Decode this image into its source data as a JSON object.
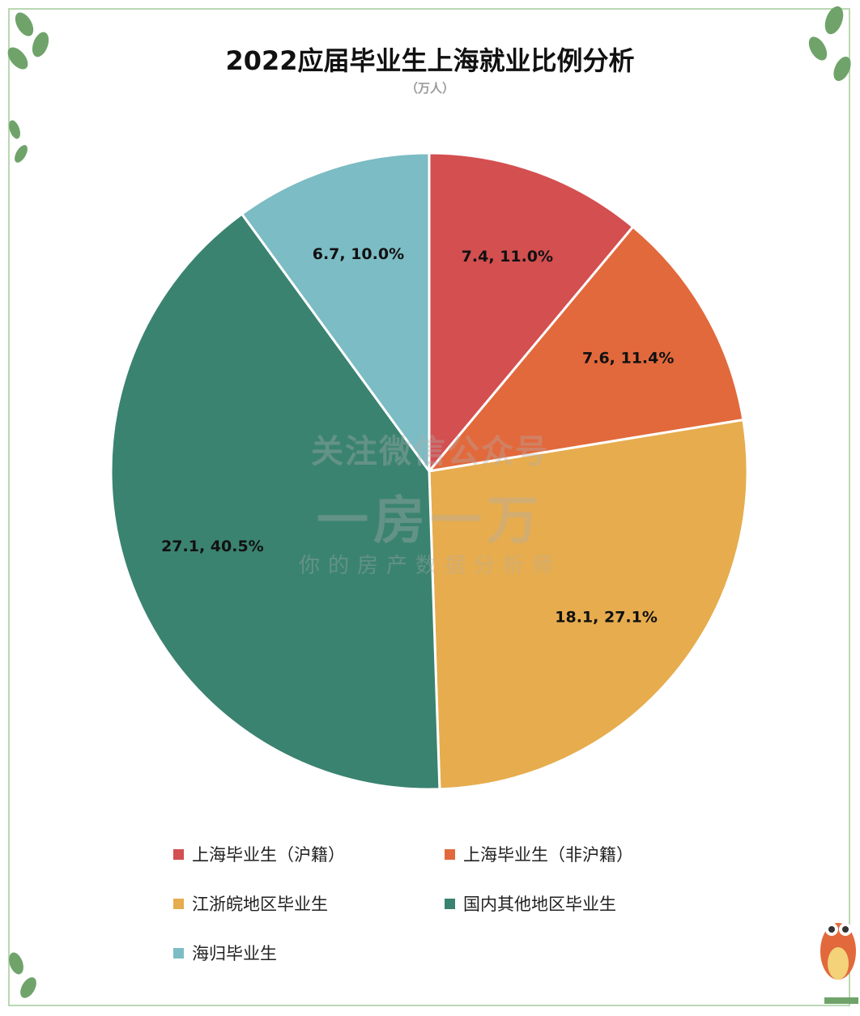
{
  "title": "2022应届毕业生上海就业比例分析",
  "unit": "（万人）",
  "watermark": {
    "line1": "关注微信公众号",
    "line2": "一房一万",
    "line3": "你的房产数据分析师"
  },
  "chart_data": {
    "type": "pie",
    "title": "2022应届毕业生上海就业比例分析",
    "unit": "（万人）",
    "legend_position": "bottom",
    "slices": [
      {
        "name": "上海毕业生（沪籍）",
        "value": 7.4,
        "percent": 11.0,
        "label": "7.4, 11.0%",
        "color": "#d34f50"
      },
      {
        "name": "上海毕业生（非沪籍）",
        "value": 7.6,
        "percent": 11.4,
        "label": "7.6, 11.4%",
        "color": "#e2693c"
      },
      {
        "name": "江浙皖地区毕业生",
        "value": 18.1,
        "percent": 27.1,
        "label": "18.1, 27.1%",
        "color": "#e6ac4e"
      },
      {
        "name": "国内其他地区毕业生",
        "value": 27.1,
        "percent": 40.5,
        "label": "27.1, 40.5%",
        "color": "#3a8370"
      },
      {
        "name": "海归毕业生",
        "value": 6.7,
        "percent": 10.0,
        "label": "6.7, 10.0%",
        "color": "#7cbcc4"
      }
    ]
  }
}
